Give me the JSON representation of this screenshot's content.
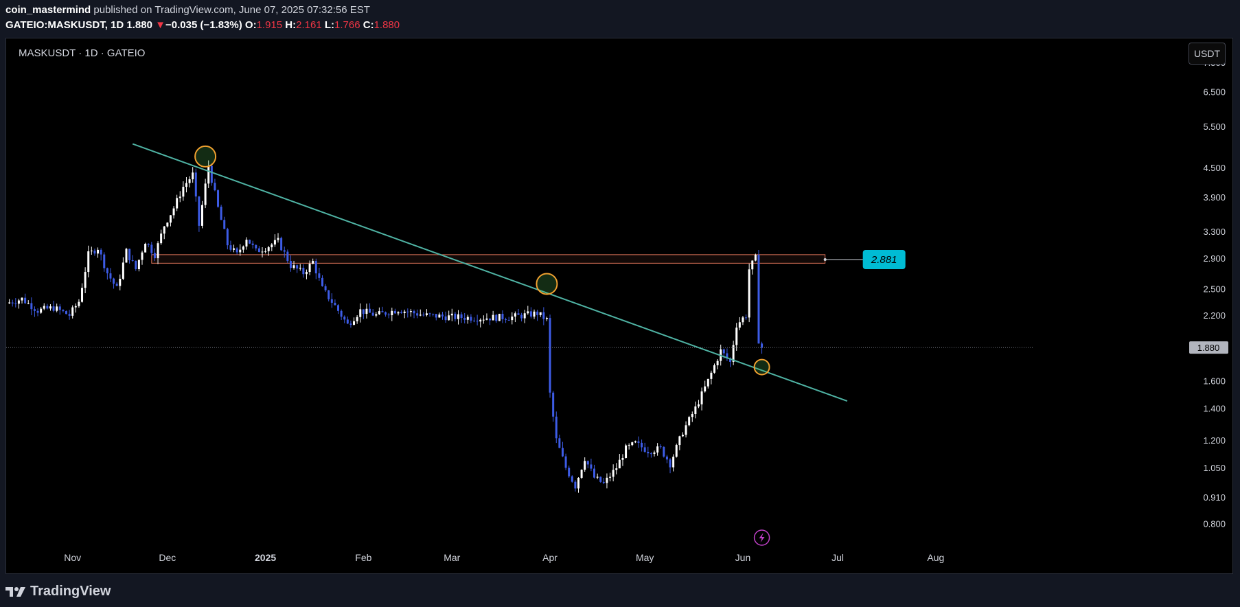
{
  "header": {
    "author": "coin_mastermind",
    "published_text": " published on TradingView.com, June 07, 2025 07:32:56 EST",
    "symbol_full": "GATEIO:MASKUSDT, 1D",
    "last": "1.880",
    "change": "−0.035 (−1.83%)",
    "o_label": "O:",
    "o": "1.915",
    "h_label": "H:",
    "h": "2.161",
    "l_label": "L:",
    "l": "1.766",
    "c_label": "C:",
    "c": "1.880"
  },
  "chart_header": {
    "symbol_line": "MASKUSDT · 1D · GATEIO",
    "unit_button": "USDT"
  },
  "footer": {
    "brand": "TradingView"
  },
  "colors": {
    "up": "#ffffff",
    "down": "#3d5ce6",
    "trendline": "#4fb3a4",
    "zone_border": "#e0745a",
    "circle": "#f0a030",
    "label_bg": "#00bcd4",
    "background": "#000000"
  },
  "chart_data": {
    "type": "candlestick",
    "scale": "log",
    "ylim": [
      0.74,
      8.2
    ],
    "y_ticks": [
      "7.500",
      "6.500",
      "5.500",
      "4.500",
      "3.900",
      "3.300",
      "2.900",
      "2.500",
      "2.200",
      "1.880",
      "1.600",
      "1.400",
      "1.200",
      "1.050",
      "0.910",
      "0.800"
    ],
    "x_ticks": [
      {
        "label": "Nov",
        "date": "2024-11-01"
      },
      {
        "label": "Dec",
        "date": "2024-12-01"
      },
      {
        "label": "2025",
        "date": "2025-01-01"
      },
      {
        "label": "Feb",
        "date": "2025-02-01"
      },
      {
        "label": "Mar",
        "date": "2025-03-01"
      },
      {
        "label": "Apr",
        "date": "2025-04-01"
      },
      {
        "label": "May",
        "date": "2025-05-01"
      },
      {
        "label": "Jun",
        "date": "2025-06-01"
      },
      {
        "label": "Jul",
        "date": "2025-07-01"
      },
      {
        "label": "Aug",
        "date": "2025-08-01"
      }
    ],
    "x_range": [
      "2024-10-11",
      "2025-08-31"
    ],
    "current_price": 1.88,
    "current_price_label": "1.880",
    "resistance_level": 2.881,
    "resistance_label": "2.881",
    "resistance_zone": [
      2.83,
      2.95
    ],
    "resistance_start": "2024-11-26",
    "resistance_end": "2025-06-27",
    "trendline": [
      {
        "date": "2024-11-20",
        "price": 5.05
      },
      {
        "date": "2025-07-04",
        "price": 1.45
      }
    ],
    "circles": [
      {
        "date": "2024-12-13",
        "price": 4.75
      },
      {
        "date": "2025-03-31",
        "price": 2.56
      },
      {
        "date": "2025-06-07",
        "price": 1.71
      }
    ],
    "lightning_marker_date": "2025-06-07",
    "anchors": [
      [
        "2024-10-11",
        2.33
      ],
      [
        "2024-10-16",
        2.38
      ],
      [
        "2024-10-21",
        2.25
      ],
      [
        "2024-10-26",
        2.28
      ],
      [
        "2024-10-31",
        2.2
      ],
      [
        "2024-11-03",
        2.35
      ],
      [
        "2024-11-06",
        2.95
      ],
      [
        "2024-11-09",
        3.05
      ],
      [
        "2024-11-12",
        2.7
      ],
      [
        "2024-11-15",
        2.5
      ],
      [
        "2024-11-18",
        3.0
      ],
      [
        "2024-11-21",
        2.75
      ],
      [
        "2024-11-24",
        3.15
      ],
      [
        "2024-11-27",
        2.95
      ],
      [
        "2024-11-30",
        3.4
      ],
      [
        "2024-12-03",
        3.7
      ],
      [
        "2024-12-06",
        4.1
      ],
      [
        "2024-12-09",
        4.35
      ],
      [
        "2024-12-11",
        3.4
      ],
      [
        "2024-12-14",
        4.55
      ],
      [
        "2024-12-17",
        3.7
      ],
      [
        "2024-12-20",
        3.1
      ],
      [
        "2024-12-23",
        2.95
      ],
      [
        "2024-12-26",
        3.2
      ],
      [
        "2024-12-29",
        3.0
      ],
      [
        "2025-01-01",
        3.05
      ],
      [
        "2025-01-05",
        3.15
      ],
      [
        "2025-01-09",
        2.8
      ],
      [
        "2025-01-13",
        2.7
      ],
      [
        "2025-01-16",
        2.85
      ],
      [
        "2025-01-19",
        2.5
      ],
      [
        "2025-01-23",
        2.3
      ],
      [
        "2025-01-27",
        2.1
      ],
      [
        "2025-01-31",
        2.25
      ],
      [
        "2025-02-05",
        2.2
      ],
      [
        "2025-02-12",
        2.26
      ],
      [
        "2025-02-20",
        2.2
      ],
      [
        "2025-03-01",
        2.18
      ],
      [
        "2025-03-10",
        2.17
      ],
      [
        "2025-03-20",
        2.18
      ],
      [
        "2025-03-28",
        2.22
      ],
      [
        "2025-03-31",
        2.15
      ],
      [
        "2025-04-01",
        1.5
      ],
      [
        "2025-04-03",
        1.2
      ],
      [
        "2025-04-06",
        1.05
      ],
      [
        "2025-04-09",
        0.96
      ],
      [
        "2025-04-12",
        1.1
      ],
      [
        "2025-04-15",
        1.0
      ],
      [
        "2025-04-18",
        0.97
      ],
      [
        "2025-04-22",
        1.05
      ],
      [
        "2025-04-25",
        1.15
      ],
      [
        "2025-04-28",
        1.18
      ],
      [
        "2025-05-02",
        1.14
      ],
      [
        "2025-05-06",
        1.15
      ],
      [
        "2025-05-09",
        1.07
      ],
      [
        "2025-05-13",
        1.25
      ],
      [
        "2025-05-17",
        1.4
      ],
      [
        "2025-05-21",
        1.6
      ],
      [
        "2025-05-25",
        1.85
      ],
      [
        "2025-05-28",
        1.75
      ],
      [
        "2025-05-30",
        2.1
      ],
      [
        "2025-06-02",
        2.2
      ],
      [
        "2025-06-03",
        2.75
      ],
      [
        "2025-06-05",
        2.9
      ],
      [
        "2025-06-06",
        1.95
      ],
      [
        "2025-06-07",
        1.88
      ]
    ]
  }
}
